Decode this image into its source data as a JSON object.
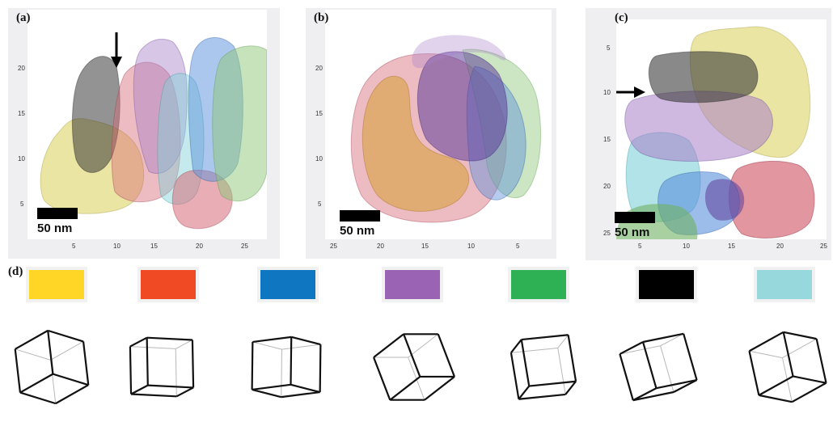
{
  "panels": [
    {
      "label": "(a)",
      "scalebar": "50 nm",
      "y_ticks": [
        "20",
        "15",
        "10",
        "5"
      ],
      "x_ticks": [
        "5",
        "10",
        "15",
        "20",
        "25"
      ]
    },
    {
      "label": "(b)",
      "scalebar": "50 nm",
      "y_ticks": [
        "20",
        "15",
        "10",
        "5"
      ],
      "x_ticks": [
        "25",
        "20",
        "15",
        "10",
        "5"
      ]
    },
    {
      "label": "(c)",
      "scalebar": "50 nm",
      "y_ticks": [
        "5",
        "10",
        "15",
        "20",
        "25"
      ],
      "x_ticks": [
        "5",
        "10",
        "15",
        "20",
        "25"
      ]
    }
  ],
  "legend": {
    "label": "(d)",
    "swatches": [
      {
        "name": "yellow",
        "color": "#ffd625"
      },
      {
        "name": "red",
        "color": "#f04a24"
      },
      {
        "name": "blue",
        "color": "#0f77c2"
      },
      {
        "name": "purple",
        "color": "#9b63b3"
      },
      {
        "name": "green",
        "color": "#2eb154"
      },
      {
        "name": "black",
        "color": "#000000"
      },
      {
        "name": "cyan",
        "color": "#96d8dc"
      }
    ]
  },
  "blob_colors": {
    "yellow": "#ded466",
    "red": "#d66a78",
    "blue": "#5a8fdc",
    "purple": "#a880c8",
    "green": "#8ec87a",
    "black": "#3a3a3a",
    "cyan": "#7fd0d8",
    "orange": "#d8a040"
  }
}
